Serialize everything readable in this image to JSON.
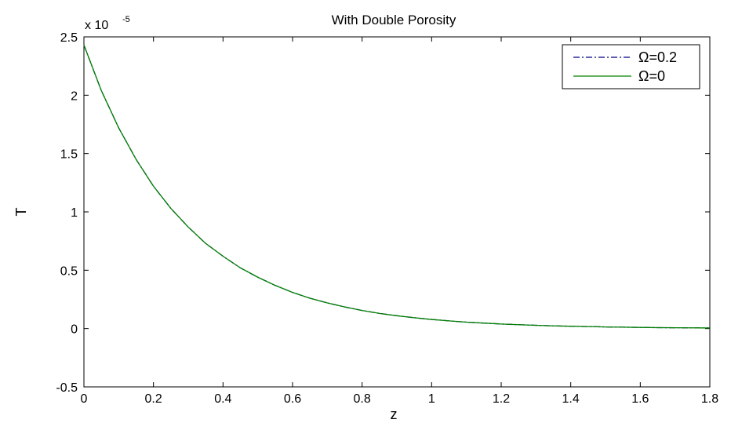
{
  "chart_data": {
    "type": "line",
    "title": "With Double Porosity",
    "xlabel": "z",
    "ylabel": "T",
    "y_multiplier": {
      "base": "x 10",
      "exponent": "-5"
    },
    "xlim": [
      0,
      1.8
    ],
    "ylim": [
      -0.5,
      2.5
    ],
    "x_ticks": [
      "0",
      "0.2",
      "0.4",
      "0.6",
      "0.8",
      "1",
      "1.2",
      "1.4",
      "1.6",
      "1.8"
    ],
    "y_ticks": [
      "-0.5",
      "0",
      "0.5",
      "1",
      "1.5",
      "2",
      "2.5"
    ],
    "grid": false,
    "legend_position": "top-right",
    "x": [
      0,
      0.05,
      0.1,
      0.15,
      0.2,
      0.25,
      0.3,
      0.35,
      0.4,
      0.45,
      0.5,
      0.55,
      0.6,
      0.65,
      0.7,
      0.75,
      0.8,
      0.85,
      0.9,
      0.95,
      1.0,
      1.05,
      1.1,
      1.15,
      1.2,
      1.25,
      1.3,
      1.35,
      1.4,
      1.45,
      1.5,
      1.55,
      1.6,
      1.65,
      1.7,
      1.75,
      1.8
    ],
    "series": [
      {
        "name": "Ω=0.2",
        "color": "#000080",
        "dash": "dash-dot",
        "values": [
          2.43,
          2.04,
          1.72,
          1.45,
          1.22,
          1.03,
          0.87,
          0.73,
          0.62,
          0.52,
          0.44,
          0.37,
          0.31,
          0.26,
          0.22,
          0.185,
          0.155,
          0.13,
          0.11,
          0.093,
          0.078,
          0.066,
          0.055,
          0.047,
          0.039,
          0.033,
          0.028,
          0.023,
          0.02,
          0.017,
          0.014,
          0.012,
          0.01,
          0.008,
          0.007,
          0.006,
          0.005
        ]
      },
      {
        "name": "Ω=0",
        "color": "#008000",
        "dash": "solid",
        "values": [
          2.43,
          2.04,
          1.72,
          1.45,
          1.22,
          1.03,
          0.87,
          0.73,
          0.62,
          0.52,
          0.44,
          0.37,
          0.31,
          0.26,
          0.22,
          0.185,
          0.155,
          0.13,
          0.11,
          0.093,
          0.078,
          0.066,
          0.055,
          0.047,
          0.039,
          0.033,
          0.028,
          0.023,
          0.02,
          0.017,
          0.014,
          0.012,
          0.01,
          0.008,
          0.007,
          0.006,
          0.005
        ]
      }
    ]
  }
}
